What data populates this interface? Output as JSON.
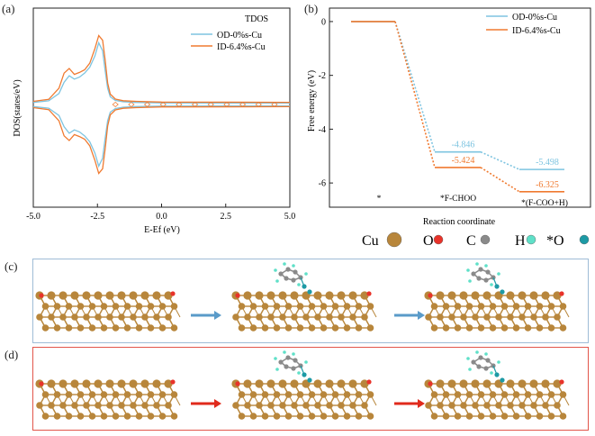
{
  "panels": {
    "a": "(a)",
    "b": "(b)",
    "c": "(c)",
    "d": "(d)"
  },
  "chart_data": [
    {
      "type": "line",
      "annotation": "TDOS",
      "xlabel": "E-Ef (eV)",
      "ylabel": "DOS(states/eV)",
      "xlim": [
        -5.0,
        5.0
      ],
      "xticks": [
        "-5.0",
        "-2.5",
        "0.0",
        "2.5",
        "5.0"
      ],
      "legend": "top-right",
      "series": [
        {
          "name": "OD-0%s-Cu",
          "color": "#7ec4e0",
          "x": [
            -5.0,
            -4.4,
            -4.0,
            -3.8,
            -3.6,
            -3.4,
            -3.2,
            -3.0,
            -2.8,
            -2.6,
            -2.45,
            -2.3,
            -2.2,
            -2.1,
            -2.0,
            -1.8,
            -1.5,
            -1.0,
            0,
            5.0
          ],
          "y": [
            0.15,
            0.4,
            1.5,
            3.2,
            4.2,
            3.7,
            4.0,
            4.6,
            5.5,
            7.2,
            9.2,
            8.0,
            5.0,
            2.3,
            1.0,
            0.45,
            0.25,
            0.15,
            0.08,
            0.05
          ]
        },
        {
          "name": "ID-6.4%s-Cu",
          "color": "#f07a30",
          "x": [
            -5.0,
            -4.4,
            -4.0,
            -3.8,
            -3.6,
            -3.4,
            -3.2,
            -3.0,
            -2.8,
            -2.6,
            -2.45,
            -2.3,
            -2.2,
            -2.1,
            -2.0,
            -1.8,
            -1.5,
            -1.0,
            0,
            5.0
          ],
          "y": [
            0.2,
            0.5,
            2.2,
            4.5,
            5.2,
            4.3,
            4.6,
            5.0,
            6.0,
            8.2,
            10.2,
            9.5,
            6.5,
            3.0,
            1.3,
            0.55,
            0.3,
            0.2,
            0.1,
            0.05
          ]
        }
      ]
    },
    {
      "type": "line",
      "xlabel": "Reaction coordinate",
      "ylabel": "Free energy (eV)",
      "ylim": [
        -6.9,
        0.5
      ],
      "yticks": [
        "0",
        "-2",
        "-4",
        "-6"
      ],
      "legend": "top-right",
      "categories": [
        "*",
        "*F-CHOO",
        "*(F-COO+H)"
      ],
      "series": [
        {
          "name": "OD-0%s-Cu",
          "color": "#7ec4e0",
          "values": [
            0,
            -4.846,
            -5.498
          ],
          "labels": [
            "",
            "-4.846",
            "-5.498"
          ]
        },
        {
          "name": "ID-6.4%s-Cu",
          "color": "#f07a30",
          "values": [
            0,
            -5.424,
            -6.325
          ],
          "labels": [
            "",
            "-5.424",
            "-6.325"
          ]
        }
      ]
    }
  ],
  "atom_legend": [
    {
      "label": "Cu",
      "color": "#b8863b"
    },
    {
      "label": "O",
      "color": "#e8332a"
    },
    {
      "label": "C",
      "color": "#8a8a8a"
    },
    {
      "label": "H",
      "color": "#5fe0c8"
    },
    {
      "label": "*O",
      "color": "#1d9aa5"
    }
  ],
  "colors": {
    "cu": "#b8863b",
    "c_row_arrow": "#5a9bc9",
    "d_row_arrow": "#e02a1c"
  }
}
